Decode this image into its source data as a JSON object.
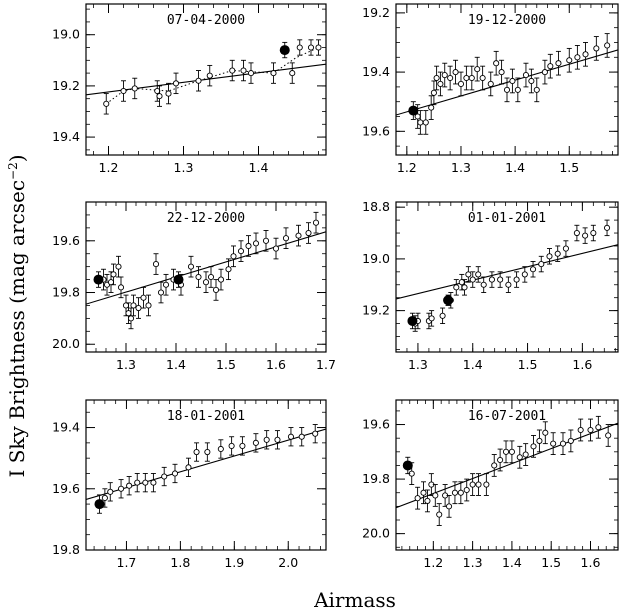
{
  "figure": {
    "ylabel_main": "I Sky Brightness (mag arcsec",
    "ylabel_sup": "−2",
    "ylabel_close": ")",
    "xlabel": "Airmass"
  },
  "chart_data": [
    {
      "type": "scatter",
      "title": "07-04-2000",
      "xlim": [
        1.17,
        1.49
      ],
      "ylim": [
        19.47,
        18.88
      ],
      "xticks": [
        1.2,
        1.3,
        1.4
      ],
      "xtick_labels": [
        "1.2",
        "1.3",
        "1.4"
      ],
      "yticks": [
        19.0,
        19.2,
        19.4
      ],
      "ytick_labels": [
        "19.0",
        "19.2",
        "19.4"
      ],
      "points": [
        {
          "x": 1.197,
          "y": 19.27,
          "err": 0.04
        },
        {
          "x": 1.22,
          "y": 19.22,
          "err": 0.04
        },
        {
          "x": 1.235,
          "y": 19.21,
          "err": 0.04
        },
        {
          "x": 1.265,
          "y": 19.22,
          "err": 0.04
        },
        {
          "x": 1.268,
          "y": 19.24,
          "err": 0.04
        },
        {
          "x": 1.28,
          "y": 19.23,
          "err": 0.04
        },
        {
          "x": 1.29,
          "y": 19.19,
          "err": 0.04
        },
        {
          "x": 1.32,
          "y": 19.18,
          "err": 0.04
        },
        {
          "x": 1.335,
          "y": 19.16,
          "err": 0.04
        },
        {
          "x": 1.365,
          "y": 19.14,
          "err": 0.04
        },
        {
          "x": 1.38,
          "y": 19.14,
          "err": 0.04
        },
        {
          "x": 1.39,
          "y": 19.15,
          "err": 0.04
        },
        {
          "x": 1.42,
          "y": 19.15,
          "err": 0.04
        },
        {
          "x": 1.445,
          "y": 19.15,
          "err": 0.04
        },
        {
          "x": 1.455,
          "y": 19.05,
          "err": 0.03
        },
        {
          "x": 1.47,
          "y": 19.05,
          "err": 0.03
        },
        {
          "x": 1.48,
          "y": 19.05,
          "err": 0.03
        }
      ],
      "filled": [
        {
          "x": 1.435,
          "y": 19.06,
          "err": 0.03
        }
      ],
      "fit": [
        [
          1.17,
          19.235
        ],
        [
          1.49,
          19.115
        ]
      ],
      "dotted": [
        [
          1.197,
          19.27
        ],
        [
          1.22,
          19.22
        ],
        [
          1.235,
          19.21
        ],
        [
          1.28,
          19.22
        ],
        [
          1.32,
          19.18
        ],
        [
          1.365,
          19.14
        ],
        [
          1.42,
          19.15
        ],
        [
          1.45,
          19.09
        ],
        [
          1.48,
          19.05
        ]
      ]
    },
    {
      "type": "scatter",
      "title": "19-12-2000",
      "xlim": [
        1.18,
        1.59
      ],
      "ylim": [
        19.68,
        19.17
      ],
      "xticks": [
        1.2,
        1.3,
        1.4,
        1.5
      ],
      "xtick_labels": [
        "1.2",
        "1.3",
        "1.4",
        "1.5"
      ],
      "yticks": [
        19.2,
        19.4,
        19.6
      ],
      "ytick_labels": [
        "19.2",
        "19.4",
        "19.6"
      ],
      "points": [
        {
          "x": 1.22,
          "y": 19.55,
          "err": 0.04
        },
        {
          "x": 1.225,
          "y": 19.57,
          "err": 0.04
        },
        {
          "x": 1.235,
          "y": 19.57,
          "err": 0.04
        },
        {
          "x": 1.245,
          "y": 19.52,
          "err": 0.04
        },
        {
          "x": 1.25,
          "y": 19.47,
          "err": 0.04
        },
        {
          "x": 1.255,
          "y": 19.42,
          "err": 0.04
        },
        {
          "x": 1.262,
          "y": 19.44,
          "err": 0.04
        },
        {
          "x": 1.27,
          "y": 19.41,
          "err": 0.04
        },
        {
          "x": 1.28,
          "y": 19.42,
          "err": 0.04
        },
        {
          "x": 1.29,
          "y": 19.4,
          "err": 0.04
        },
        {
          "x": 1.3,
          "y": 19.44,
          "err": 0.04
        },
        {
          "x": 1.31,
          "y": 19.42,
          "err": 0.04
        },
        {
          "x": 1.32,
          "y": 19.42,
          "err": 0.04
        },
        {
          "x": 1.33,
          "y": 19.39,
          "err": 0.04
        },
        {
          "x": 1.34,
          "y": 19.42,
          "err": 0.04
        },
        {
          "x": 1.355,
          "y": 19.44,
          "err": 0.04
        },
        {
          "x": 1.365,
          "y": 19.37,
          "err": 0.04
        },
        {
          "x": 1.375,
          "y": 19.4,
          "err": 0.04
        },
        {
          "x": 1.385,
          "y": 19.46,
          "err": 0.04
        },
        {
          "x": 1.395,
          "y": 19.43,
          "err": 0.04
        },
        {
          "x": 1.405,
          "y": 19.46,
          "err": 0.04
        },
        {
          "x": 1.42,
          "y": 19.41,
          "err": 0.04
        },
        {
          "x": 1.43,
          "y": 19.43,
          "err": 0.04
        },
        {
          "x": 1.44,
          "y": 19.46,
          "err": 0.04
        },
        {
          "x": 1.455,
          "y": 19.4,
          "err": 0.04
        },
        {
          "x": 1.465,
          "y": 19.38,
          "err": 0.04
        },
        {
          "x": 1.48,
          "y": 19.37,
          "err": 0.04
        },
        {
          "x": 1.5,
          "y": 19.36,
          "err": 0.04
        },
        {
          "x": 1.515,
          "y": 19.35,
          "err": 0.04
        },
        {
          "x": 1.53,
          "y": 19.34,
          "err": 0.04
        },
        {
          "x": 1.55,
          "y": 19.32,
          "err": 0.04
        },
        {
          "x": 1.57,
          "y": 19.31,
          "err": 0.04
        }
      ],
      "filled": [
        {
          "x": 1.212,
          "y": 19.53,
          "err": 0.03
        }
      ],
      "fit": [
        [
          1.18,
          19.545
        ],
        [
          1.59,
          19.325
        ]
      ],
      "dotted": []
    },
    {
      "type": "scatter",
      "title": "22-12-2000",
      "xlim": [
        1.22,
        1.7
      ],
      "ylim": [
        20.03,
        19.45
      ],
      "xticks": [
        1.3,
        1.4,
        1.5,
        1.6,
        1.7
      ],
      "xtick_labels": [
        "1.3",
        "1.4",
        "1.5",
        "1.6",
        "1.7"
      ],
      "yticks": [
        19.6,
        19.8,
        20.0
      ],
      "ytick_labels": [
        "19.6",
        "19.8",
        "20.0"
      ],
      "points": [
        {
          "x": 1.255,
          "y": 19.75,
          "err": 0.04
        },
        {
          "x": 1.262,
          "y": 19.77,
          "err": 0.04
        },
        {
          "x": 1.27,
          "y": 19.76,
          "err": 0.04
        },
        {
          "x": 1.275,
          "y": 19.73,
          "err": 0.04
        },
        {
          "x": 1.285,
          "y": 19.7,
          "err": 0.04
        },
        {
          "x": 1.29,
          "y": 19.78,
          "err": 0.04
        },
        {
          "x": 1.3,
          "y": 19.85,
          "err": 0.04
        },
        {
          "x": 1.305,
          "y": 19.88,
          "err": 0.04
        },
        {
          "x": 1.31,
          "y": 19.9,
          "err": 0.04
        },
        {
          "x": 1.315,
          "y": 19.85,
          "err": 0.04
        },
        {
          "x": 1.325,
          "y": 19.86,
          "err": 0.04
        },
        {
          "x": 1.335,
          "y": 19.82,
          "err": 0.04
        },
        {
          "x": 1.345,
          "y": 19.85,
          "err": 0.04
        },
        {
          "x": 1.36,
          "y": 19.69,
          "err": 0.04
        },
        {
          "x": 1.37,
          "y": 19.8,
          "err": 0.04
        },
        {
          "x": 1.38,
          "y": 19.77,
          "err": 0.04
        },
        {
          "x": 1.395,
          "y": 19.75,
          "err": 0.04
        },
        {
          "x": 1.41,
          "y": 19.77,
          "err": 0.04
        },
        {
          "x": 1.43,
          "y": 19.7,
          "err": 0.04
        },
        {
          "x": 1.445,
          "y": 19.74,
          "err": 0.04
        },
        {
          "x": 1.46,
          "y": 19.76,
          "err": 0.04
        },
        {
          "x": 1.47,
          "y": 19.74,
          "err": 0.04
        },
        {
          "x": 1.48,
          "y": 19.79,
          "err": 0.04
        },
        {
          "x": 1.49,
          "y": 19.75,
          "err": 0.04
        },
        {
          "x": 1.505,
          "y": 19.71,
          "err": 0.04
        },
        {
          "x": 1.515,
          "y": 19.66,
          "err": 0.04
        },
        {
          "x": 1.53,
          "y": 19.64,
          "err": 0.04
        },
        {
          "x": 1.545,
          "y": 19.62,
          "err": 0.04
        },
        {
          "x": 1.56,
          "y": 19.61,
          "err": 0.04
        },
        {
          "x": 1.58,
          "y": 19.6,
          "err": 0.04
        },
        {
          "x": 1.6,
          "y": 19.63,
          "err": 0.04
        },
        {
          "x": 1.62,
          "y": 19.59,
          "err": 0.04
        },
        {
          "x": 1.645,
          "y": 19.58,
          "err": 0.04
        },
        {
          "x": 1.665,
          "y": 19.57,
          "err": 0.04
        },
        {
          "x": 1.68,
          "y": 19.53,
          "err": 0.04
        }
      ],
      "filled": [
        {
          "x": 1.245,
          "y": 19.75,
          "err": 0.03
        },
        {
          "x": 1.405,
          "y": 19.75,
          "err": 0.03
        }
      ],
      "fit": [
        [
          1.22,
          19.845
        ],
        [
          1.7,
          19.565
        ]
      ],
      "dotted": []
    },
    {
      "type": "scatter",
      "title": "01-01-2001",
      "xlim": [
        1.26,
        1.665
      ],
      "ylim": [
        19.36,
        18.78
      ],
      "xticks": [
        1.3,
        1.4,
        1.5,
        1.6
      ],
      "xtick_labels": [
        "1.3",
        "1.4",
        "1.5",
        "1.6"
      ],
      "yticks": [
        18.8,
        19.0,
        19.2
      ],
      "ytick_labels": [
        "18.8",
        "19.0",
        "19.2"
      ],
      "points": [
        {
          "x": 1.295,
          "y": 19.25,
          "err": 0.03
        },
        {
          "x": 1.3,
          "y": 19.24,
          "err": 0.03
        },
        {
          "x": 1.32,
          "y": 19.24,
          "err": 0.03
        },
        {
          "x": 1.325,
          "y": 19.23,
          "err": 0.03
        },
        {
          "x": 1.345,
          "y": 19.22,
          "err": 0.03
        },
        {
          "x": 1.36,
          "y": 19.16,
          "err": 0.03
        },
        {
          "x": 1.37,
          "y": 19.11,
          "err": 0.03
        },
        {
          "x": 1.38,
          "y": 19.09,
          "err": 0.03
        },
        {
          "x": 1.385,
          "y": 19.11,
          "err": 0.03
        },
        {
          "x": 1.392,
          "y": 19.06,
          "err": 0.03
        },
        {
          "x": 1.4,
          "y": 19.08,
          "err": 0.03
        },
        {
          "x": 1.41,
          "y": 19.06,
          "err": 0.03
        },
        {
          "x": 1.42,
          "y": 19.1,
          "err": 0.03
        },
        {
          "x": 1.435,
          "y": 19.08,
          "err": 0.03
        },
        {
          "x": 1.45,
          "y": 19.08,
          "err": 0.03
        },
        {
          "x": 1.465,
          "y": 19.1,
          "err": 0.03
        },
        {
          "x": 1.48,
          "y": 19.08,
          "err": 0.03
        },
        {
          "x": 1.495,
          "y": 19.06,
          "err": 0.03
        },
        {
          "x": 1.51,
          "y": 19.04,
          "err": 0.03
        },
        {
          "x": 1.525,
          "y": 19.02,
          "err": 0.03
        },
        {
          "x": 1.54,
          "y": 18.99,
          "err": 0.03
        },
        {
          "x": 1.555,
          "y": 18.98,
          "err": 0.03
        },
        {
          "x": 1.57,
          "y": 18.96,
          "err": 0.03
        },
        {
          "x": 1.59,
          "y": 18.9,
          "err": 0.03
        },
        {
          "x": 1.605,
          "y": 18.91,
          "err": 0.03
        },
        {
          "x": 1.62,
          "y": 18.9,
          "err": 0.03
        },
        {
          "x": 1.645,
          "y": 18.88,
          "err": 0.03
        }
      ],
      "filled": [
        {
          "x": 1.29,
          "y": 19.24,
          "err": 0.03
        },
        {
          "x": 1.355,
          "y": 19.16,
          "err": 0.02
        }
      ],
      "fit": [
        [
          1.26,
          19.155
        ],
        [
          1.665,
          18.945
        ]
      ],
      "dotted": []
    },
    {
      "type": "scatter",
      "title": "18-01-2001",
      "xlim": [
        1.625,
        2.07
      ],
      "ylim": [
        19.8,
        19.31
      ],
      "xticks": [
        1.7,
        1.8,
        1.9,
        2.0
      ],
      "xtick_labels": [
        "1.7",
        "1.8",
        "1.9",
        "2.0"
      ],
      "yticks": [
        19.4,
        19.6,
        19.8
      ],
      "ytick_labels": [
        "19.4",
        "19.6",
        "19.8"
      ],
      "points": [
        {
          "x": 1.66,
          "y": 19.63,
          "err": 0.03
        },
        {
          "x": 1.67,
          "y": 19.61,
          "err": 0.03
        },
        {
          "x": 1.69,
          "y": 19.6,
          "err": 0.03
        },
        {
          "x": 1.705,
          "y": 19.59,
          "err": 0.03
        },
        {
          "x": 1.72,
          "y": 19.58,
          "err": 0.03
        },
        {
          "x": 1.735,
          "y": 19.58,
          "err": 0.03
        },
        {
          "x": 1.75,
          "y": 19.58,
          "err": 0.03
        },
        {
          "x": 1.77,
          "y": 19.56,
          "err": 0.03
        },
        {
          "x": 1.79,
          "y": 19.55,
          "err": 0.03
        },
        {
          "x": 1.815,
          "y": 19.53,
          "err": 0.03
        },
        {
          "x": 1.83,
          "y": 19.48,
          "err": 0.03
        },
        {
          "x": 1.85,
          "y": 19.48,
          "err": 0.03
        },
        {
          "x": 1.875,
          "y": 19.47,
          "err": 0.03
        },
        {
          "x": 1.895,
          "y": 19.46,
          "err": 0.03
        },
        {
          "x": 1.915,
          "y": 19.46,
          "err": 0.03
        },
        {
          "x": 1.94,
          "y": 19.45,
          "err": 0.03
        },
        {
          "x": 1.96,
          "y": 19.44,
          "err": 0.03
        },
        {
          "x": 1.98,
          "y": 19.44,
          "err": 0.03
        },
        {
          "x": 2.005,
          "y": 19.43,
          "err": 0.03
        },
        {
          "x": 2.025,
          "y": 19.43,
          "err": 0.03
        },
        {
          "x": 2.05,
          "y": 19.42,
          "err": 0.03
        }
      ],
      "filled": [
        {
          "x": 1.65,
          "y": 19.65,
          "err": 0.03
        }
      ],
      "fit": [
        [
          1.625,
          19.635
        ],
        [
          2.07,
          19.405
        ]
      ],
      "dotted": []
    },
    {
      "type": "scatter",
      "title": "16-07-2001",
      "xlim": [
        1.105,
        1.67
      ],
      "ylim": [
        20.06,
        19.51
      ],
      "xticks": [
        1.2,
        1.3,
        1.4,
        1.5,
        1.6
      ],
      "xtick_labels": [
        "1.2",
        "1.3",
        "1.4",
        "1.5",
        "1.6"
      ],
      "yticks": [
        19.6,
        19.8,
        20.0
      ],
      "ytick_labels": [
        "19.6",
        "19.8",
        "20.0"
      ],
      "points": [
        {
          "x": 1.145,
          "y": 19.78,
          "err": 0.04
        },
        {
          "x": 1.16,
          "y": 19.87,
          "err": 0.04
        },
        {
          "x": 1.175,
          "y": 19.85,
          "err": 0.04
        },
        {
          "x": 1.185,
          "y": 19.88,
          "err": 0.04
        },
        {
          "x": 1.195,
          "y": 19.82,
          "err": 0.04
        },
        {
          "x": 1.205,
          "y": 19.86,
          "err": 0.04
        },
        {
          "x": 1.215,
          "y": 19.93,
          "err": 0.04
        },
        {
          "x": 1.23,
          "y": 19.86,
          "err": 0.04
        },
        {
          "x": 1.24,
          "y": 19.9,
          "err": 0.04
        },
        {
          "x": 1.255,
          "y": 19.85,
          "err": 0.04
        },
        {
          "x": 1.27,
          "y": 19.85,
          "err": 0.04
        },
        {
          "x": 1.285,
          "y": 19.84,
          "err": 0.04
        },
        {
          "x": 1.3,
          "y": 19.82,
          "err": 0.04
        },
        {
          "x": 1.315,
          "y": 19.82,
          "err": 0.04
        },
        {
          "x": 1.335,
          "y": 19.82,
          "err": 0.04
        },
        {
          "x": 1.355,
          "y": 19.75,
          "err": 0.04
        },
        {
          "x": 1.37,
          "y": 19.73,
          "err": 0.04
        },
        {
          "x": 1.385,
          "y": 19.7,
          "err": 0.04
        },
        {
          "x": 1.4,
          "y": 19.7,
          "err": 0.04
        },
        {
          "x": 1.42,
          "y": 19.72,
          "err": 0.04
        },
        {
          "x": 1.435,
          "y": 19.71,
          "err": 0.04
        },
        {
          "x": 1.455,
          "y": 19.68,
          "err": 0.04
        },
        {
          "x": 1.47,
          "y": 19.66,
          "err": 0.04
        },
        {
          "x": 1.485,
          "y": 19.63,
          "err": 0.04
        },
        {
          "x": 1.505,
          "y": 19.67,
          "err": 0.04
        },
        {
          "x": 1.53,
          "y": 19.67,
          "err": 0.04
        },
        {
          "x": 1.55,
          "y": 19.66,
          "err": 0.04
        },
        {
          "x": 1.575,
          "y": 19.62,
          "err": 0.04
        },
        {
          "x": 1.6,
          "y": 19.62,
          "err": 0.04
        },
        {
          "x": 1.62,
          "y": 19.61,
          "err": 0.04
        },
        {
          "x": 1.645,
          "y": 19.64,
          "err": 0.04
        }
      ],
      "filled": [
        {
          "x": 1.135,
          "y": 19.75,
          "err": 0.03
        }
      ],
      "fit": [
        [
          1.105,
          19.905
        ],
        [
          1.67,
          19.595
        ]
      ],
      "dotted": []
    }
  ]
}
